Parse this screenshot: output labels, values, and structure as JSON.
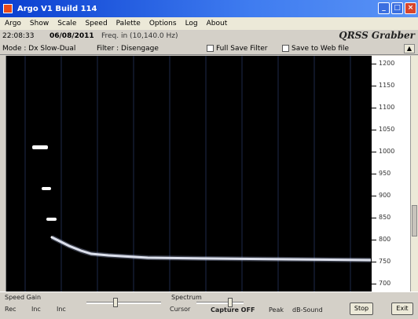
{
  "window": {
    "title": "Argo V1 Build 114"
  },
  "menu": {
    "items": [
      "Argo",
      "Show",
      "Scale",
      "Speed",
      "Palette",
      "Options",
      "Log",
      "About"
    ]
  },
  "info": {
    "time": "22:08:33",
    "date": "06/08/2011",
    "freq": "Freq. in (10,140.0 Hz)",
    "brand": "QRSS Grabber"
  },
  "modebar": {
    "mode": "Mode : Dx Slow-Dual",
    "filter": "Filter : Disengage",
    "full_save": "Full Save Filter",
    "save_web": "Save to Web file",
    "scroll_up": "▲"
  },
  "axis": {
    "labels": [
      "1200",
      "1150",
      "1100",
      "1050",
      "1000",
      "950",
      "900",
      "850",
      "800",
      "750",
      "700"
    ]
  },
  "bottom": {
    "speed_label": "Speed Gain",
    "row1_a": "Rec",
    "row1_b": "Inc",
    "row1_c": "Inc",
    "cursor_label": "Cursor",
    "amp_label": "Spectrum",
    "capture": "Capture OFF",
    "peak": "Peak",
    "db": "dB-Sound",
    "stop_button": "Stop",
    "exit_button": "Exit"
  },
  "colors": {
    "plot_bg": "#000000",
    "trace": "#ffffff",
    "title_accent": "#0a3fd0"
  }
}
